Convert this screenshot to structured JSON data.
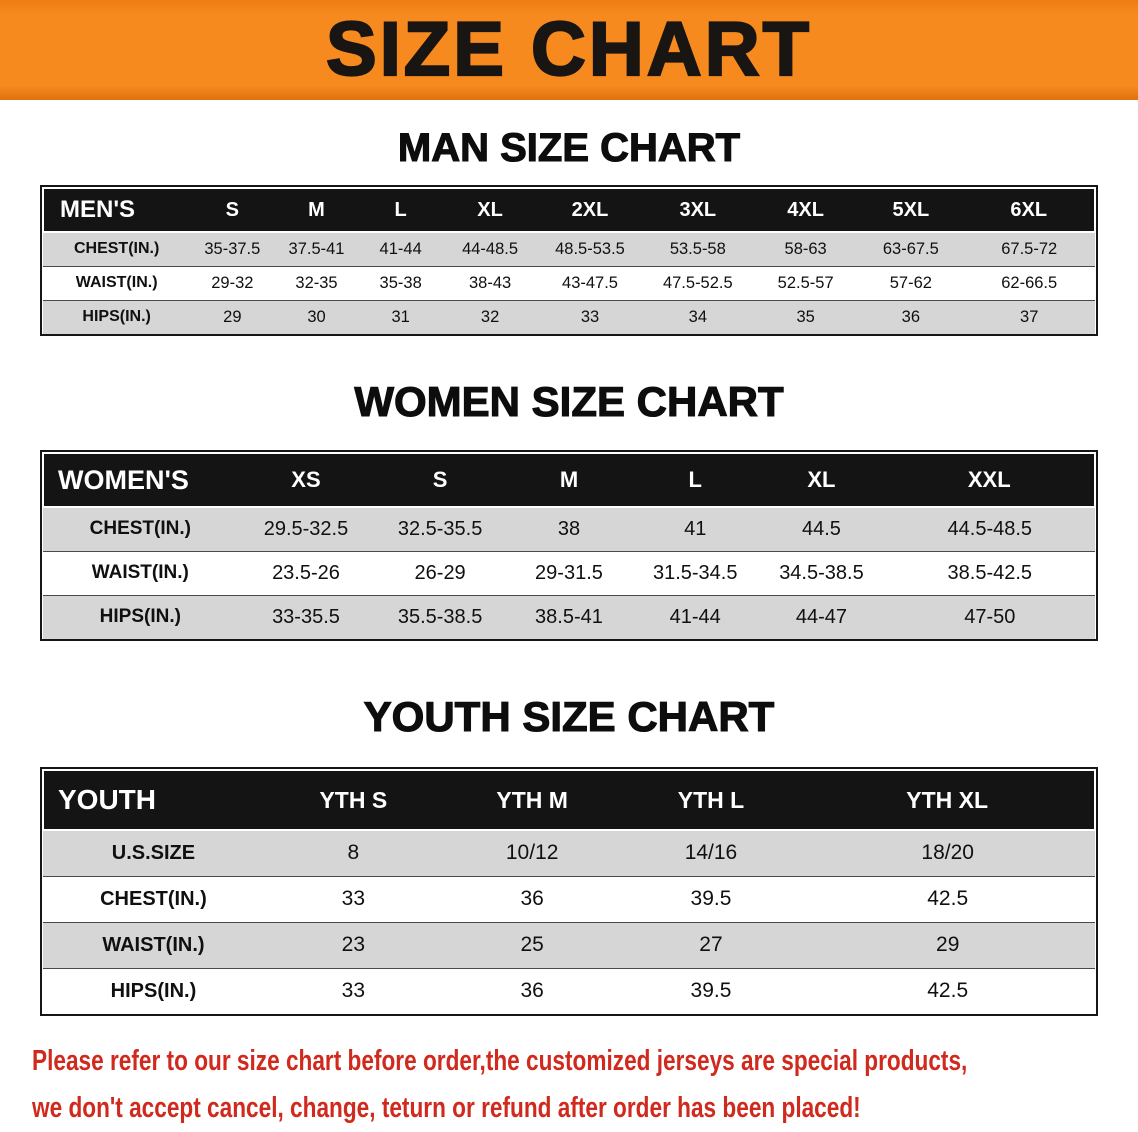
{
  "banner": {
    "title": "SIZE CHART"
  },
  "sections": [
    {
      "id": "men",
      "heading": "MAN SIZE CHART",
      "table": {
        "header": [
          "MEN'S",
          "S",
          "M",
          "L",
          "XL",
          "2XL",
          "3XL",
          "4XL",
          "5XL",
          "6XL"
        ],
        "col_widths": [
          "14%",
          "8%",
          "8%",
          "8%",
          "9%",
          "10%",
          "10.5%",
          "10%",
          "10%",
          "12.5%"
        ],
        "rows": [
          {
            "label": "CHEST(IN.)",
            "values": [
              "35-37.5",
              "37.5-41",
              "41-44",
              "44-48.5",
              "48.5-53.5",
              "53.5-58",
              "58-63",
              "63-67.5",
              "67.5-72"
            ]
          },
          {
            "label": "WAIST(IN.)",
            "values": [
              "29-32",
              "32-35",
              "35-38",
              "38-43",
              "43-47.5",
              "47.5-52.5",
              "52.5-57",
              "57-62",
              "62-66.5"
            ]
          },
          {
            "label": "HIPS(IN.)",
            "values": [
              "29",
              "30",
              "31",
              "32",
              "33",
              "34",
              "35",
              "36",
              "37"
            ]
          }
        ]
      }
    },
    {
      "id": "women",
      "heading": "WOMEN SIZE CHART",
      "table": {
        "header": [
          "WOMEN'S",
          "XS",
          "S",
          "M",
          "L",
          "XL",
          "XXL"
        ],
        "col_widths": [
          "18.5%",
          "13%",
          "12.5%",
          "12%",
          "12%",
          "12%",
          "20%"
        ],
        "rows": [
          {
            "label": "CHEST(IN.)",
            "values": [
              "29.5-32.5",
              "32.5-35.5",
              "38",
              "41",
              "44.5",
              "44.5-48.5"
            ]
          },
          {
            "label": "WAIST(IN.)",
            "values": [
              "23.5-26",
              "26-29",
              "29-31.5",
              "31.5-34.5",
              "34.5-38.5",
              "38.5-42.5"
            ]
          },
          {
            "label": "HIPS(IN.)",
            "values": [
              "33-35.5",
              "35.5-38.5",
              "38.5-41",
              "41-44",
              "44-47",
              "47-50"
            ]
          }
        ]
      }
    },
    {
      "id": "youth",
      "heading": "YOUTH SIZE CHART",
      "table": {
        "header": [
          "YOUTH",
          "YTH S",
          "YTH M",
          "YTH L",
          "YTH XL"
        ],
        "col_widths": [
          "21%",
          "17%",
          "17%",
          "17%",
          "28%"
        ],
        "rows": [
          {
            "label": "U.S.SIZE",
            "values": [
              "8",
              "10/12",
              "14/16",
              "18/20"
            ]
          },
          {
            "label": "CHEST(IN.)",
            "values": [
              "33",
              "36",
              "39.5",
              "42.5"
            ]
          },
          {
            "label": "WAIST(IN.)",
            "values": [
              "23",
              "25",
              "27",
              "29"
            ]
          },
          {
            "label": "HIPS(IN.)",
            "values": [
              "33",
              "36",
              "39.5",
              "42.5"
            ]
          }
        ]
      }
    }
  ],
  "disclaimer": {
    "line1": "Please refer to our size chart before order,the customized jerseys are special products,",
    "line2": "we don't accept cancel, change, teturn or refund after order has been placed!"
  },
  "colors": {
    "banner_bg": "#f68a1e",
    "header_bg": "#141414",
    "shaded_row": "#d6d6d6",
    "disclaimer_text": "#d02a1e"
  }
}
